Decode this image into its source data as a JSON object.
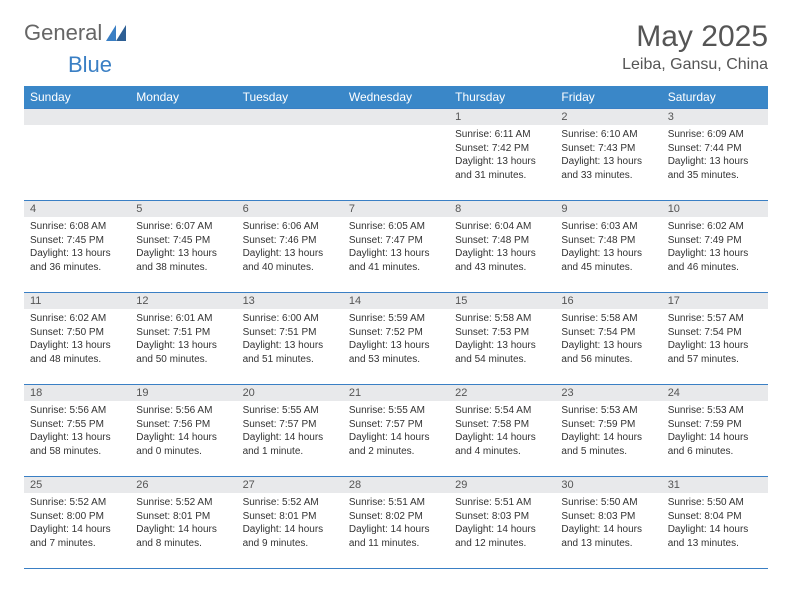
{
  "logo": {
    "text1": "General",
    "text2": "Blue"
  },
  "title": "May 2025",
  "location": "Leiba, Gansu, China",
  "colors": {
    "header_bg": "#3a87c8",
    "header_text": "#ffffff",
    "daynum_bg": "#e8e9eb",
    "border": "#3a7fc4",
    "text": "#333333",
    "title_color": "#555555",
    "logo_blue": "#3a7fc4"
  },
  "day_headers": [
    "Sunday",
    "Monday",
    "Tuesday",
    "Wednesday",
    "Thursday",
    "Friday",
    "Saturday"
  ],
  "weeks": [
    [
      {
        "n": "",
        "sr": "",
        "ss": "",
        "dl1": "",
        "dl2": ""
      },
      {
        "n": "",
        "sr": "",
        "ss": "",
        "dl1": "",
        "dl2": ""
      },
      {
        "n": "",
        "sr": "",
        "ss": "",
        "dl1": "",
        "dl2": ""
      },
      {
        "n": "",
        "sr": "",
        "ss": "",
        "dl1": "",
        "dl2": ""
      },
      {
        "n": "1",
        "sr": "Sunrise: 6:11 AM",
        "ss": "Sunset: 7:42 PM",
        "dl1": "Daylight: 13 hours",
        "dl2": "and 31 minutes."
      },
      {
        "n": "2",
        "sr": "Sunrise: 6:10 AM",
        "ss": "Sunset: 7:43 PM",
        "dl1": "Daylight: 13 hours",
        "dl2": "and 33 minutes."
      },
      {
        "n": "3",
        "sr": "Sunrise: 6:09 AM",
        "ss": "Sunset: 7:44 PM",
        "dl1": "Daylight: 13 hours",
        "dl2": "and 35 minutes."
      }
    ],
    [
      {
        "n": "4",
        "sr": "Sunrise: 6:08 AM",
        "ss": "Sunset: 7:45 PM",
        "dl1": "Daylight: 13 hours",
        "dl2": "and 36 minutes."
      },
      {
        "n": "5",
        "sr": "Sunrise: 6:07 AM",
        "ss": "Sunset: 7:45 PM",
        "dl1": "Daylight: 13 hours",
        "dl2": "and 38 minutes."
      },
      {
        "n": "6",
        "sr": "Sunrise: 6:06 AM",
        "ss": "Sunset: 7:46 PM",
        "dl1": "Daylight: 13 hours",
        "dl2": "and 40 minutes."
      },
      {
        "n": "7",
        "sr": "Sunrise: 6:05 AM",
        "ss": "Sunset: 7:47 PM",
        "dl1": "Daylight: 13 hours",
        "dl2": "and 41 minutes."
      },
      {
        "n": "8",
        "sr": "Sunrise: 6:04 AM",
        "ss": "Sunset: 7:48 PM",
        "dl1": "Daylight: 13 hours",
        "dl2": "and 43 minutes."
      },
      {
        "n": "9",
        "sr": "Sunrise: 6:03 AM",
        "ss": "Sunset: 7:48 PM",
        "dl1": "Daylight: 13 hours",
        "dl2": "and 45 minutes."
      },
      {
        "n": "10",
        "sr": "Sunrise: 6:02 AM",
        "ss": "Sunset: 7:49 PM",
        "dl1": "Daylight: 13 hours",
        "dl2": "and 46 minutes."
      }
    ],
    [
      {
        "n": "11",
        "sr": "Sunrise: 6:02 AM",
        "ss": "Sunset: 7:50 PM",
        "dl1": "Daylight: 13 hours",
        "dl2": "and 48 minutes."
      },
      {
        "n": "12",
        "sr": "Sunrise: 6:01 AM",
        "ss": "Sunset: 7:51 PM",
        "dl1": "Daylight: 13 hours",
        "dl2": "and 50 minutes."
      },
      {
        "n": "13",
        "sr": "Sunrise: 6:00 AM",
        "ss": "Sunset: 7:51 PM",
        "dl1": "Daylight: 13 hours",
        "dl2": "and 51 minutes."
      },
      {
        "n": "14",
        "sr": "Sunrise: 5:59 AM",
        "ss": "Sunset: 7:52 PM",
        "dl1": "Daylight: 13 hours",
        "dl2": "and 53 minutes."
      },
      {
        "n": "15",
        "sr": "Sunrise: 5:58 AM",
        "ss": "Sunset: 7:53 PM",
        "dl1": "Daylight: 13 hours",
        "dl2": "and 54 minutes."
      },
      {
        "n": "16",
        "sr": "Sunrise: 5:58 AM",
        "ss": "Sunset: 7:54 PM",
        "dl1": "Daylight: 13 hours",
        "dl2": "and 56 minutes."
      },
      {
        "n": "17",
        "sr": "Sunrise: 5:57 AM",
        "ss": "Sunset: 7:54 PM",
        "dl1": "Daylight: 13 hours",
        "dl2": "and 57 minutes."
      }
    ],
    [
      {
        "n": "18",
        "sr": "Sunrise: 5:56 AM",
        "ss": "Sunset: 7:55 PM",
        "dl1": "Daylight: 13 hours",
        "dl2": "and 58 minutes."
      },
      {
        "n": "19",
        "sr": "Sunrise: 5:56 AM",
        "ss": "Sunset: 7:56 PM",
        "dl1": "Daylight: 14 hours",
        "dl2": "and 0 minutes."
      },
      {
        "n": "20",
        "sr": "Sunrise: 5:55 AM",
        "ss": "Sunset: 7:57 PM",
        "dl1": "Daylight: 14 hours",
        "dl2": "and 1 minute."
      },
      {
        "n": "21",
        "sr": "Sunrise: 5:55 AM",
        "ss": "Sunset: 7:57 PM",
        "dl1": "Daylight: 14 hours",
        "dl2": "and 2 minutes."
      },
      {
        "n": "22",
        "sr": "Sunrise: 5:54 AM",
        "ss": "Sunset: 7:58 PM",
        "dl1": "Daylight: 14 hours",
        "dl2": "and 4 minutes."
      },
      {
        "n": "23",
        "sr": "Sunrise: 5:53 AM",
        "ss": "Sunset: 7:59 PM",
        "dl1": "Daylight: 14 hours",
        "dl2": "and 5 minutes."
      },
      {
        "n": "24",
        "sr": "Sunrise: 5:53 AM",
        "ss": "Sunset: 7:59 PM",
        "dl1": "Daylight: 14 hours",
        "dl2": "and 6 minutes."
      }
    ],
    [
      {
        "n": "25",
        "sr": "Sunrise: 5:52 AM",
        "ss": "Sunset: 8:00 PM",
        "dl1": "Daylight: 14 hours",
        "dl2": "and 7 minutes."
      },
      {
        "n": "26",
        "sr": "Sunrise: 5:52 AM",
        "ss": "Sunset: 8:01 PM",
        "dl1": "Daylight: 14 hours",
        "dl2": "and 8 minutes."
      },
      {
        "n": "27",
        "sr": "Sunrise: 5:52 AM",
        "ss": "Sunset: 8:01 PM",
        "dl1": "Daylight: 14 hours",
        "dl2": "and 9 minutes."
      },
      {
        "n": "28",
        "sr": "Sunrise: 5:51 AM",
        "ss": "Sunset: 8:02 PM",
        "dl1": "Daylight: 14 hours",
        "dl2": "and 11 minutes."
      },
      {
        "n": "29",
        "sr": "Sunrise: 5:51 AM",
        "ss": "Sunset: 8:03 PM",
        "dl1": "Daylight: 14 hours",
        "dl2": "and 12 minutes."
      },
      {
        "n": "30",
        "sr": "Sunrise: 5:50 AM",
        "ss": "Sunset: 8:03 PM",
        "dl1": "Daylight: 14 hours",
        "dl2": "and 13 minutes."
      },
      {
        "n": "31",
        "sr": "Sunrise: 5:50 AM",
        "ss": "Sunset: 8:04 PM",
        "dl1": "Daylight: 14 hours",
        "dl2": "and 13 minutes."
      }
    ]
  ]
}
